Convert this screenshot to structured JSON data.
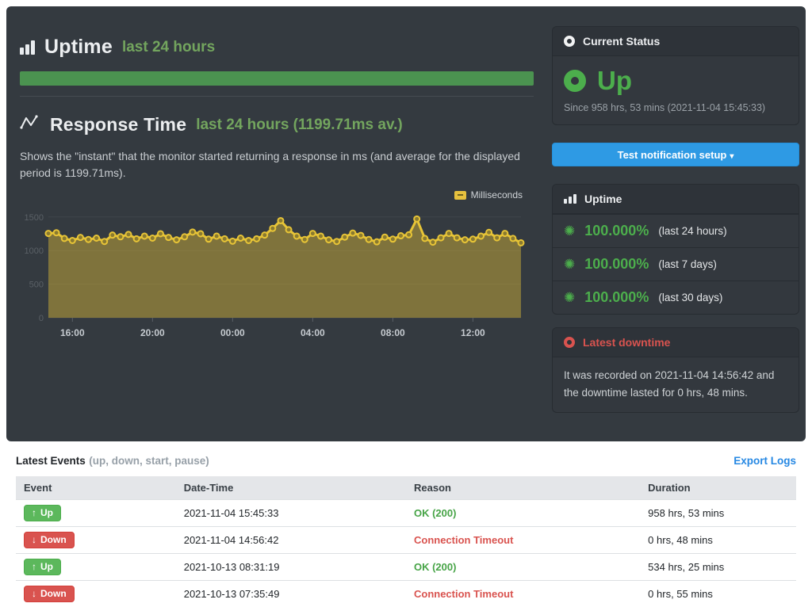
{
  "theme": {
    "panel_bg": "#343a40",
    "accent_green": "#4cae4c",
    "title_green": "#73a55e",
    "progress_green": "#4b9350",
    "chart_yellow": "#e7c437",
    "button_blue": "#2e9ae4",
    "danger_red": "#d9534f",
    "badge_green": "#5cb85c",
    "link_blue": "#2688e3"
  },
  "uptime_section": {
    "title": "Uptime",
    "subtitle": "last 24 hours",
    "progress_percent": 100
  },
  "response_section": {
    "title": "Response Time",
    "subtitle": "last 24 hours (1199.71ms av.)",
    "description": "Shows the \"instant\" that the monitor started returning a response in ms (and average for the displayed period is 1199.71ms)."
  },
  "chart_data": {
    "type": "area",
    "title": "Response Time last 24 hours",
    "average_ms": 1199.71,
    "legend": "Milliseconds",
    "ylim": [
      0,
      1580
    ],
    "yticks": [
      0,
      500,
      1000,
      1500
    ],
    "x_tick_labels": [
      "16:00",
      "20:00",
      "00:00",
      "04:00",
      "08:00",
      "12:00"
    ],
    "x_tick_indices": [
      3,
      13,
      23,
      33,
      43,
      53
    ],
    "values": [
      1255,
      1265,
      1180,
      1150,
      1195,
      1165,
      1185,
      1135,
      1230,
      1205,
      1240,
      1175,
      1215,
      1185,
      1250,
      1195,
      1160,
      1205,
      1275,
      1250,
      1170,
      1215,
      1175,
      1140,
      1185,
      1150,
      1175,
      1230,
      1330,
      1445,
      1310,
      1215,
      1165,
      1255,
      1215,
      1160,
      1135,
      1200,
      1260,
      1225,
      1165,
      1130,
      1200,
      1170,
      1220,
      1235,
      1470,
      1180,
      1125,
      1190,
      1255,
      1190,
      1160,
      1170,
      1215,
      1270,
      1190,
      1255,
      1180,
      1115
    ],
    "style": {
      "line": "#e7c437",
      "fill": "rgba(231,196,55,0.42)",
      "point_fill": "#8a7a30",
      "grid": "#3f444a",
      "ytick_color": "#5a6066",
      "xtick_color": "#c6cbd0"
    }
  },
  "sidebar": {
    "current_status": {
      "header": "Current Status",
      "state": "Up",
      "since": "Since 958 hrs, 53 mins (2021-11-04 15:45:33)"
    },
    "notification_button": {
      "label": "Test notification setup",
      "caret": "▾"
    },
    "uptime_panel": {
      "header": "Uptime",
      "burst_icon": "✺",
      "rows": [
        {
          "value": "100.000%",
          "period": "(last 24 hours)"
        },
        {
          "value": "100.000%",
          "period": "(last 7 days)"
        },
        {
          "value": "100.000%",
          "period": "(last 30 days)"
        }
      ]
    },
    "latest_downtime": {
      "header": "Latest downtime",
      "text": "It was recorded on 2021-11-04 14:56:42 and the downtime lasted for 0 hrs, 48 mins."
    }
  },
  "events": {
    "title": "Latest Events",
    "subtitle": "(up, down, start, pause)",
    "export_label": "Export Logs",
    "columns": [
      "Event",
      "Date-Time",
      "Reason",
      "Duration"
    ],
    "rows": [
      {
        "badge": "Up",
        "arrow": "↑",
        "badge_class": "badge badge-up",
        "datetime": "2021-11-04 15:45:33",
        "reason": "OK (200)",
        "reason_class": "reason reason-ok",
        "duration": "958 hrs, 53 mins"
      },
      {
        "badge": "Down",
        "arrow": "↓",
        "badge_class": "badge badge-down",
        "datetime": "2021-11-04 14:56:42",
        "reason": "Connection Timeout",
        "reason_class": "reason reason-fail",
        "duration": "0 hrs, 48 mins"
      },
      {
        "badge": "Up",
        "arrow": "↑",
        "badge_class": "badge badge-up",
        "datetime": "2021-10-13 08:31:19",
        "reason": "OK (200)",
        "reason_class": "reason reason-ok",
        "duration": "534 hrs, 25 mins"
      },
      {
        "badge": "Down",
        "arrow": "↓",
        "badge_class": "badge badge-down",
        "datetime": "2021-10-13 07:35:49",
        "reason": "Connection Timeout",
        "reason_class": "reason reason-fail",
        "duration": "0 hrs, 55 mins"
      }
    ]
  }
}
